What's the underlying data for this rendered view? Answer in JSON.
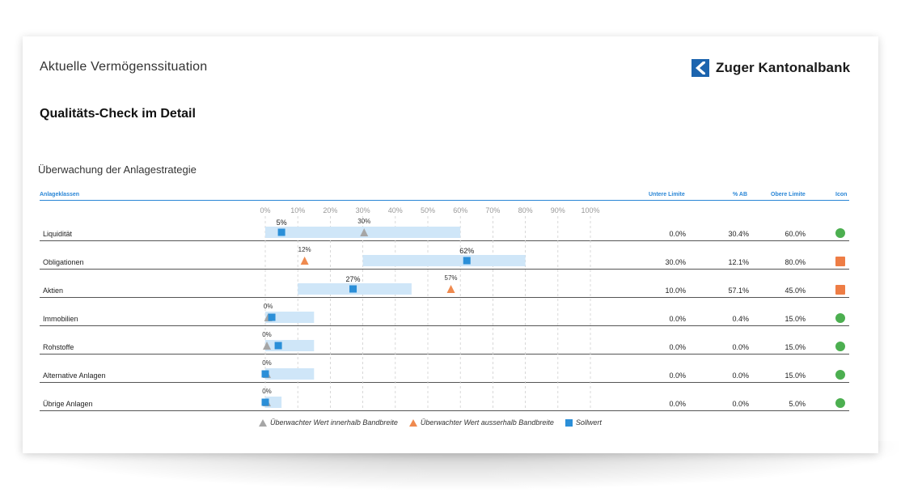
{
  "header": {
    "title": "Aktuelle Vermögenssituation",
    "subtitle": "Qualitäts-Check im Detail",
    "section": "Überwachung der Anlagestrategie",
    "logo_text": "Zuger Kantonalbank"
  },
  "table": {
    "col_class": "Anlageklassen",
    "col_lower": "Untere Limite",
    "col_ab": "% AB",
    "col_upper": "Obere Limite",
    "col_icon": "Icon"
  },
  "colors": {
    "band": "#cfe6f8",
    "sollwert": "#2b8fd8",
    "within": "#a6a6a6",
    "outside": "#ef8a4f",
    "ok": "#4caf50",
    "warn": "#ee7d45"
  },
  "legend": {
    "within": "Überwachter Wert innerhalb Bandbreite",
    "outside": "Überwachter Wert ausserhalb Bandbreite",
    "sollwert": "Sollwert"
  },
  "chart_data": {
    "type": "bar",
    "x_ticks": [
      "0%",
      "10%",
      "20%",
      "30%",
      "40%",
      "50%",
      "60%",
      "70%",
      "80%",
      "90%",
      "100%"
    ],
    "xlim": [
      0,
      100
    ],
    "rows": [
      {
        "name": "Liquidität",
        "band": [
          0,
          60
        ],
        "sollwert": 5,
        "sollwert_label": "5%",
        "value": 30.4,
        "value_label": "30%",
        "within": true,
        "lower": "0.0%",
        "ab": "30.4%",
        "upper": "60.0%",
        "status": "ok"
      },
      {
        "name": "Obligationen",
        "band": [
          30,
          80
        ],
        "sollwert": 62,
        "sollwert_label": "62%",
        "value": 12.1,
        "value_label": "12%",
        "within": false,
        "lower": "30.0%",
        "ab": "12.1%",
        "upper": "80.0%",
        "status": "warn"
      },
      {
        "name": "Aktien",
        "band": [
          10,
          45
        ],
        "sollwert": 27,
        "sollwert_label": "27%",
        "value": 57.1,
        "value_label": "57%",
        "within": false,
        "lower": "10.0%",
        "ab": "57.1%",
        "upper": "45.0%",
        "status": "warn"
      },
      {
        "name": "Immobilien",
        "band": [
          0,
          15
        ],
        "sollwert": 2,
        "sollwert_label": "",
        "value": 0.4,
        "value_label": "0%",
        "within": true,
        "lower": "0.0%",
        "ab": "0.4%",
        "upper": "15.0%",
        "status": "ok"
      },
      {
        "name": "Rohstoffe",
        "band": [
          0,
          15
        ],
        "sollwert": 4,
        "sollwert_label": "",
        "value": 0.0,
        "value_label": "0%",
        "within": true,
        "lower": "0.0%",
        "ab": "0.0%",
        "upper": "15.0%",
        "status": "ok"
      },
      {
        "name": "Alternative Anlagen",
        "band": [
          0,
          15
        ],
        "sollwert": 0,
        "sollwert_label": "",
        "value": 0.0,
        "value_label": "0%",
        "within": true,
        "lower": "0.0%",
        "ab": "0.0%",
        "upper": "15.0%",
        "status": "ok"
      },
      {
        "name": "Übrige Anlagen",
        "band": [
          0,
          5
        ],
        "sollwert": 0,
        "sollwert_label": "",
        "value": 0.0,
        "value_label": "0%",
        "within": true,
        "lower": "0.0%",
        "ab": "0.0%",
        "upper": "5.0%",
        "status": "ok"
      }
    ]
  }
}
